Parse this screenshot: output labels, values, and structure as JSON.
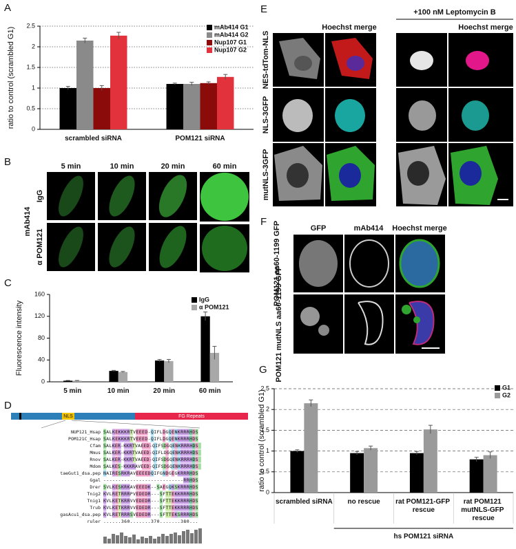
{
  "chart_data": [
    {
      "type": "bar",
      "panel": "A",
      "ylabel": "ratio to control (scrambled G1)",
      "categories": [
        "scrambled siRNA",
        "POM121 siRNA"
      ],
      "series": [
        {
          "name": "mAb414 G1",
          "color": "#000000",
          "values": [
            1.0,
            1.1
          ],
          "errors": [
            0.04,
            0.02
          ]
        },
        {
          "name": "mAb414 G2",
          "color": "#8a8a8a",
          "values": [
            2.15,
            1.1
          ],
          "errors": [
            0.06,
            0.04
          ]
        },
        {
          "name": "Nup107 G1",
          "color": "#8b0a0a",
          "values": [
            1.0,
            1.12
          ],
          "errors": [
            0.06,
            0.03
          ]
        },
        {
          "name": "Nup107 G2",
          "color": "#e2323b",
          "values": [
            2.27,
            1.27
          ],
          "errors": [
            0.08,
            0.06
          ]
        }
      ],
      "ylim": [
        0,
        2.5
      ],
      "yticks": [
        0,
        0.5,
        1,
        1.5,
        2,
        2.5
      ],
      "grid": true,
      "grid_style": "dotted",
      "legend": "upper right"
    },
    {
      "type": "bar",
      "panel": "C",
      "ylabel": "Fluorescence intensity",
      "categories": [
        "5 min",
        "10 min",
        "20 min",
        "60 min"
      ],
      "series": [
        {
          "name": "IgG",
          "color": "#000000",
          "values": [
            2,
            20,
            39,
            120
          ],
          "errors": [
            0.5,
            1,
            2,
            8
          ]
        },
        {
          "name": "α POM121",
          "color": "#a8a8a8",
          "values": [
            2,
            18,
            38,
            53
          ],
          "errors": [
            0.5,
            1,
            3,
            12
          ]
        }
      ],
      "ylim": [
        0,
        160
      ],
      "yticks": [
        0,
        40,
        80,
        120,
        160
      ],
      "grid": false,
      "legend": "upper right"
    },
    {
      "type": "bar",
      "panel": "G",
      "ylabel": "ratio to control (scrambled G1)",
      "categories": [
        "scrambled siRNA",
        "no rescue",
        "rat POM121-GFP rescue",
        "rat POM121 mutNLS-GFP rescue"
      ],
      "group_label": "hs POM121 siRNA",
      "series": [
        {
          "name": "G1",
          "color": "#000000",
          "values": [
            1.0,
            0.95,
            0.95,
            0.8
          ],
          "errors": [
            0.03,
            0.04,
            0.04,
            0.05
          ]
        },
        {
          "name": "G2",
          "color": "#9a9a9a",
          "values": [
            2.15,
            1.07,
            1.52,
            0.9
          ],
          "errors": [
            0.08,
            0.05,
            0.1,
            0.08
          ]
        }
      ],
      "ylim": [
        0,
        2.5
      ],
      "yticks": [
        0,
        0.5,
        1,
        1.5,
        2,
        2.5
      ],
      "grid": true,
      "grid_style": "dashed",
      "legend": "upper right"
    }
  ],
  "panels": {
    "B": {
      "letter": "B",
      "columns": [
        "5 min",
        "10 min",
        "20 min",
        "60 min"
      ],
      "rows": [
        "IgG",
        "α POM121"
      ],
      "group": "mAb414"
    },
    "D": {
      "letter": "D",
      "domains": [
        "NLS",
        "FG Repeats"
      ],
      "alignment": [
        {
          "name": "NUP121_Hsap",
          "seq": "SALKEKKKRTVEEED-QIFLDGQENKRRRHDS"
        },
        {
          "name": "POM121C_Hsap",
          "seq": "SALKEKKKRTVEEED-QIFLDGQENKRRRHDS"
        },
        {
          "name": "Cfam",
          "seq": "SALKER-KKRTVAEED-QIFSDGQENKRRRHDS"
        },
        {
          "name": "Mmus",
          "seq": "SALKER-KKRTVAEED-QIFLDGQENKRRRHDS"
        },
        {
          "name": "Rnov",
          "seq": "SALKER-KKRTVAEED-QIFSDGQENKRRRHDS"
        },
        {
          "name": "Mdom",
          "seq": "SALKES-KKKRAVEED-QIFSDGQENKRRRHDS"
        },
        {
          "name": "taeGut1_dsa.pep",
          "seq": "NAIRESRKRAVEEEEDQIFGNDGEGKRRRHDS"
        },
        {
          "name": "Ggal",
          "seq": "---------------------------RRHDS"
        },
        {
          "name": "Drer",
          "seq": "SVLKESKRKAVEEEDK--SAEGQKSKRRRHDS"
        },
        {
          "name": "Tnig2",
          "seq": "KVLRETRRRPVEDEDR---SFTTEKKRRRHDS"
        },
        {
          "name": "Tnig1",
          "seq": "KVLKETKRRVVEDEDR---SFTTEKKRRRHDS"
        },
        {
          "name": "Trub",
          "seq": "KVLKETKRRVVEDEDR---SFTTEKKRRRHDS"
        },
        {
          "name": "gasAcu1_dsa.pep",
          "seq": "KVLRETRRRSVEDEDR---SFTTEKSRRRHDS"
        },
        {
          "name": "ruler",
          "seq": "......360.......370.......380..."
        }
      ]
    },
    "E": {
      "letter": "E",
      "header": "+100 nM Leptomycin B",
      "columns": [
        "Hoechst merge",
        "Hoechst merge"
      ],
      "rows": [
        "NES-tdTom-NLS",
        "NLS-3GFP",
        "mutNLS-3GFP"
      ]
    },
    "F": {
      "letter": "F",
      "columns": [
        "GFP",
        "mAb414",
        "Hoechst merge"
      ],
      "rows": [
        "POM121 aa60-1199 GFP",
        "POM121 mutNLS aa60-1199 GFP"
      ]
    }
  }
}
